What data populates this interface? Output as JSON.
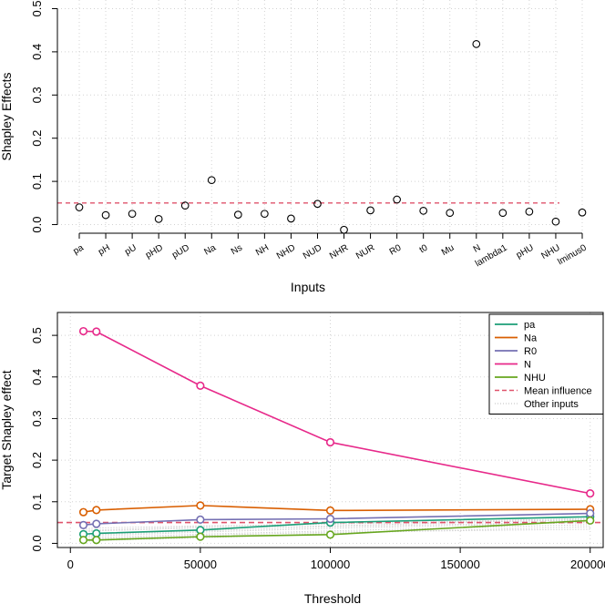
{
  "chart_data": [
    {
      "type": "scatter",
      "xlabel": "Inputs",
      "ylabel": "Shapley Effects",
      "categories": [
        "pa",
        "pH",
        "pU",
        "pHD",
        "pUD",
        "Na",
        "Ns",
        "NH",
        "NHD",
        "NUD",
        "NHR",
        "NUR",
        "R0",
        "t0",
        "Mu",
        "N",
        "lambda1",
        "pHU",
        "NHU",
        "lminus0"
      ],
      "values": [
        0.04,
        0.022,
        0.025,
        0.013,
        0.044,
        0.103,
        0.023,
        0.025,
        0.014,
        0.048,
        -0.012,
        0.033,
        0.058,
        0.032,
        0.027,
        0.418,
        0.027,
        0.03,
        0.007,
        0.028
      ],
      "ylim": [
        -0.02,
        0.52
      ],
      "yticks": [
        0.0,
        0.1,
        0.2,
        0.3,
        0.4,
        0.5
      ],
      "ytick_labels": [
        "0.0",
        "0.1",
        "0.2",
        "0.3",
        "0.4",
        "0.5"
      ],
      "reference_line": {
        "y": 0.05,
        "color": "#DF536B"
      },
      "grid": true
    },
    {
      "type": "line",
      "xlabel": "Threshold",
      "ylabel": "Target Shapley effect",
      "x": [
        5000,
        10000,
        50000,
        100000,
        200000
      ],
      "xlim": [
        -5000,
        205000
      ],
      "xticks": [
        0,
        50000,
        100000,
        150000,
        200000
      ],
      "xtick_labels": [
        "0",
        "50000",
        "100000",
        "150000",
        "200000"
      ],
      "ylim": [
        -0.01,
        0.555
      ],
      "yticks": [
        0.0,
        0.1,
        0.2,
        0.3,
        0.4,
        0.5
      ],
      "ytick_labels": [
        "0.0",
        "0.1",
        "0.2",
        "0.3",
        "0.4",
        "0.5"
      ],
      "grid": true,
      "series": [
        {
          "name": "pa",
          "color": "#1B9E77",
          "values": [
            0.022,
            0.024,
            0.032,
            0.05,
            0.064
          ]
        },
        {
          "name": "Na",
          "color": "#D95F02",
          "values": [
            0.075,
            0.08,
            0.091,
            0.079,
            0.082
          ]
        },
        {
          "name": "R0",
          "color": "#7570B3",
          "values": [
            0.044,
            0.047,
            0.057,
            0.059,
            0.072
          ]
        },
        {
          "name": "N",
          "color": "#E7298A",
          "values": [
            0.51,
            0.509,
            0.379,
            0.243,
            0.12
          ]
        },
        {
          "name": "NHU",
          "color": "#66A61E",
          "values": [
            0.008,
            0.008,
            0.016,
            0.021,
            0.055
          ]
        }
      ],
      "mean_influence": {
        "name": "Mean influence",
        "y": 0.05,
        "color": "#DF536B"
      },
      "other_inputs": {
        "name": "Other inputs",
        "color": "#BEBEBE",
        "series": [
          [
            0.01,
            0.014,
            0.022,
            0.03,
            0.045
          ],
          [
            0.016,
            0.018,
            0.027,
            0.036,
            0.05
          ],
          [
            0.028,
            0.03,
            0.037,
            0.042,
            0.058
          ],
          [
            0.035,
            0.037,
            0.042,
            0.046,
            0.06
          ],
          [
            0.005,
            0.007,
            0.013,
            0.024,
            0.04
          ],
          [
            0.02,
            0.021,
            0.03,
            0.04,
            0.052
          ],
          [
            0.031,
            0.032,
            0.04,
            0.048,
            0.055
          ],
          [
            0.012,
            0.011,
            0.019,
            0.027,
            0.034
          ]
        ]
      },
      "legend_position": "top-right"
    }
  ]
}
